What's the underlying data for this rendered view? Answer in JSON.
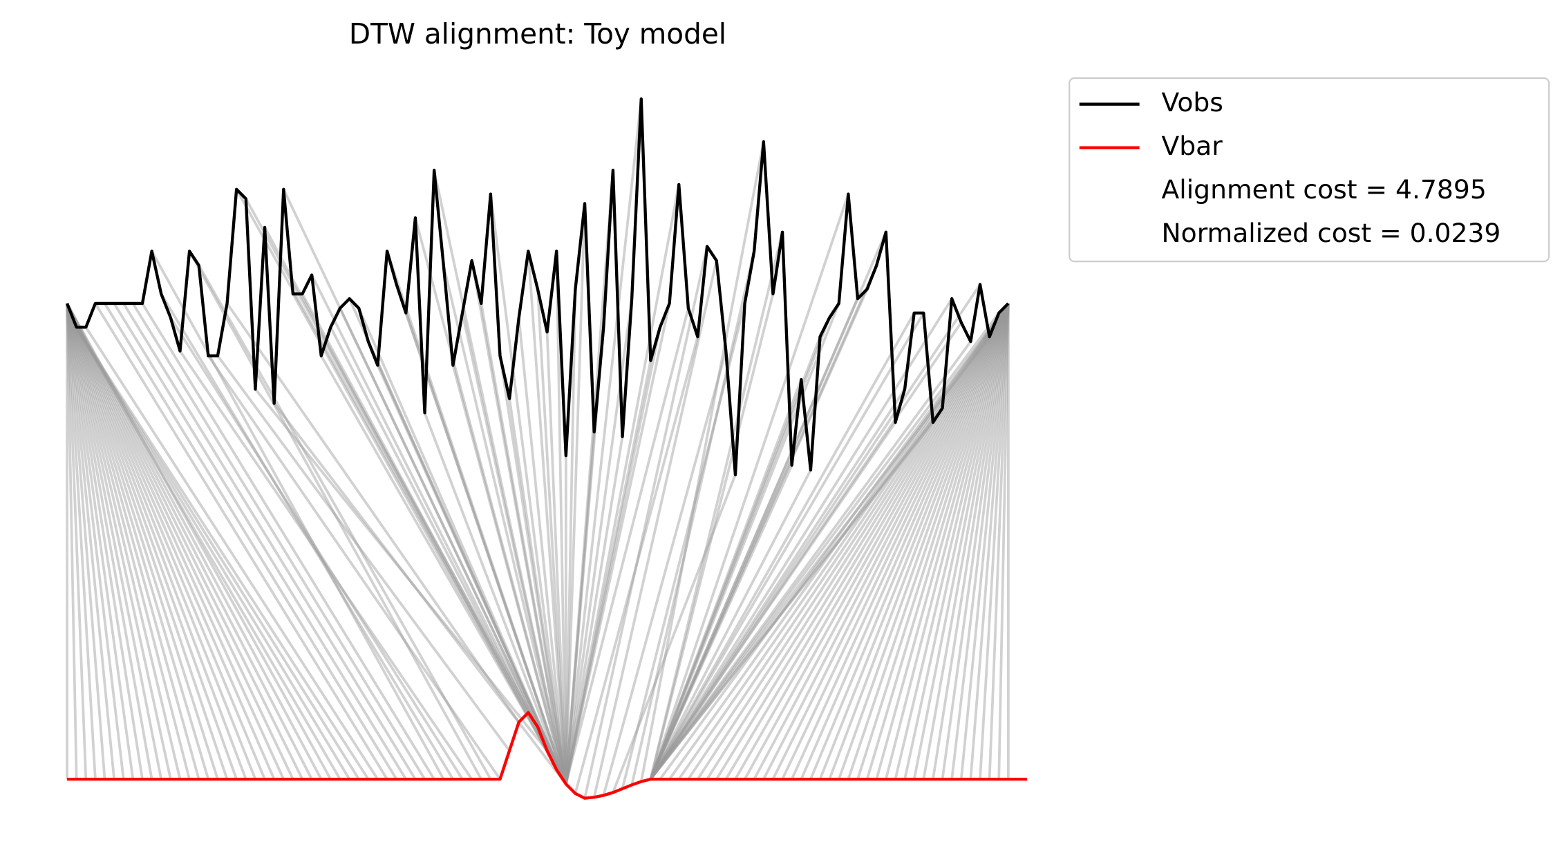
{
  "chart_data": {
    "type": "dtw",
    "title": "DTW alignment: Toy model",
    "xlim": [
      0,
      100
    ],
    "ylim": [
      -1,
      15
    ],
    "path_color": "#999999",
    "series": [
      {
        "name": "Vobs",
        "color": "#000000",
        "values": [
          10.0,
          9.5,
          9.5,
          10.0,
          10.0,
          10.0,
          10.0,
          10.0,
          10.0,
          11.1,
          10.2,
          9.7,
          9.0,
          11.1,
          10.8,
          8.9,
          8.9,
          10.0,
          12.4,
          12.2,
          8.2,
          11.6,
          7.9,
          12.4,
          10.2,
          10.2,
          10.6,
          8.9,
          9.5,
          9.9,
          10.1,
          9.9,
          9.2,
          8.7,
          11.1,
          10.4,
          9.8,
          11.8,
          7.7,
          12.8,
          10.8,
          8.7,
          9.8,
          10.9,
          10.0,
          12.3,
          8.9,
          8.0,
          9.7,
          11.1,
          10.3,
          9.4,
          11.1,
          6.8,
          10.3,
          12.1,
          7.3,
          9.5,
          12.8,
          7.2,
          10.1,
          14.3,
          8.8,
          9.5,
          10.0,
          12.5,
          9.9,
          9.3,
          11.2,
          10.9,
          9.0,
          6.4,
          10.0,
          11.1,
          13.4,
          10.2,
          11.5,
          6.6,
          8.4,
          6.5,
          9.3,
          9.7,
          10.0,
          12.3,
          10.1,
          10.3,
          10.8,
          11.5,
          7.5,
          8.2,
          9.8,
          9.8,
          7.5,
          7.8,
          10.1,
          9.6,
          9.2,
          10.4,
          9.3,
          9.8,
          10.0
        ]
      },
      {
        "name": "Vbar",
        "color": "#ff0000",
        "values": [
          0,
          0,
          0,
          0,
          0,
          0,
          0,
          0,
          0,
          0,
          0,
          0,
          0,
          0,
          0,
          0,
          0,
          0,
          0,
          0,
          0,
          0,
          0,
          0,
          0,
          0,
          0,
          0,
          0,
          0,
          0,
          0,
          0,
          0,
          0,
          0,
          0,
          0,
          0,
          0,
          0,
          0,
          0,
          0,
          0,
          0,
          0,
          0.6,
          1.2,
          1.4,
          1.1,
          0.6,
          0.2,
          -0.1,
          -0.3,
          -0.4,
          -0.38,
          -0.34,
          -0.28,
          -0.2,
          -0.12,
          -0.05,
          0,
          0,
          0,
          0,
          0,
          0,
          0,
          0,
          0,
          0,
          0,
          0,
          0,
          0,
          0,
          0,
          0,
          0,
          0,
          0,
          0,
          0,
          0,
          0,
          0,
          0,
          0,
          0,
          0,
          0,
          0,
          0,
          0,
          0,
          0,
          0,
          0,
          0,
          0,
          0,
          0
        ]
      }
    ],
    "path_obs": [
      0,
      0,
      0,
      0,
      0,
      0,
      0,
      0,
      0,
      0,
      0,
      0,
      0,
      0,
      0,
      0,
      0,
      0,
      0,
      0,
      0,
      0,
      0,
      0,
      0,
      0,
      0,
      0,
      0,
      1,
      1,
      1,
      1,
      2,
      3,
      4,
      5,
      6,
      7,
      8,
      9,
      10,
      11,
      12,
      13,
      14,
      15,
      16,
      17,
      18,
      19,
      20,
      21,
      22,
      23,
      24,
      25,
      26,
      27,
      28,
      29,
      30,
      31,
      32,
      33,
      34,
      35,
      36,
      37,
      38,
      39,
      40,
      41,
      42,
      43,
      44,
      45,
      46,
      47,
      48,
      49,
      50,
      51,
      52,
      53,
      54,
      55,
      56,
      57,
      58,
      59,
      60,
      61,
      62,
      63,
      64,
      65,
      66,
      67,
      68,
      69,
      70,
      71,
      72,
      73,
      74,
      75,
      76,
      77,
      78,
      79,
      80,
      81,
      82,
      83,
      84,
      85,
      86,
      87,
      88,
      89,
      90,
      91,
      92,
      93,
      94,
      95,
      96,
      97,
      98,
      99,
      100,
      100,
      100,
      100,
      100,
      100,
      100,
      100,
      100,
      100,
      100,
      100,
      100,
      100,
      100,
      100,
      100,
      100,
      100,
      100,
      100,
      100,
      100,
      100,
      100,
      100,
      100,
      100,
      100,
      100,
      100,
      100,
      100,
      100,
      100,
      100,
      100,
      100
    ],
    "path_bar": [
      0,
      1,
      2,
      3,
      4,
      5,
      6,
      7,
      8,
      9,
      10,
      11,
      12,
      13,
      14,
      15,
      16,
      17,
      18,
      19,
      20,
      21,
      22,
      23,
      24,
      25,
      26,
      27,
      28,
      29,
      30,
      31,
      32,
      33,
      34,
      35,
      36,
      37,
      38,
      39,
      40,
      41,
      42,
      43,
      44,
      45,
      46,
      47,
      48,
      49,
      50,
      51,
      52,
      53,
      53,
      53,
      53,
      53,
      53,
      53,
      53,
      53,
      53,
      53,
      53,
      53,
      53,
      53,
      53,
      53,
      53,
      53,
      53,
      53,
      53,
      53,
      53,
      53,
      53,
      53,
      53,
      53,
      53,
      53,
      53,
      53,
      53,
      53,
      53,
      53,
      53,
      53,
      53,
      53,
      53,
      53,
      53,
      53,
      54,
      55,
      56,
      57,
      58,
      59,
      60,
      61,
      62,
      62,
      62,
      62,
      62,
      62,
      62,
      62,
      62,
      62,
      62,
      62,
      62,
      62,
      62,
      62,
      62,
      62,
      62,
      62,
      62,
      62,
      62,
      62,
      62,
      63,
      64,
      65,
      66,
      67,
      68,
      69,
      70,
      71,
      72,
      73,
      74,
      75,
      76,
      77,
      78,
      79,
      80,
      81,
      82,
      83,
      84,
      85,
      86,
      87,
      88,
      89,
      90,
      91,
      92,
      93,
      94,
      95,
      96,
      97,
      98,
      99,
      100
    ],
    "legend_notes": [
      "Alignment cost = 4.7895",
      "Normalized cost = 0.0239"
    ]
  }
}
